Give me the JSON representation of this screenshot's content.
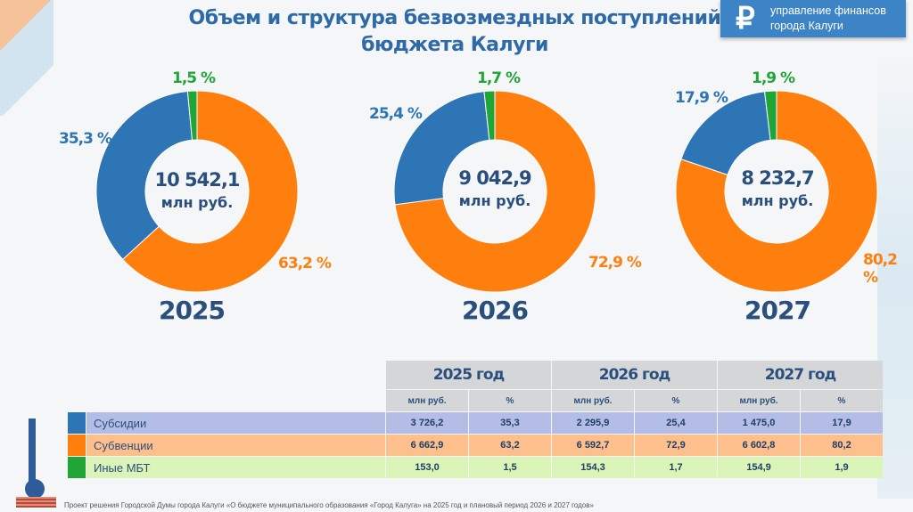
{
  "header": {
    "title_line1": "Объем и структура безвозмездных поступлений",
    "title_line2": "бюджета Калуги",
    "brand_symbol": "₽",
    "brand_line1": "управление финансов",
    "brand_line2": "города Калуги"
  },
  "colors": {
    "subsidies": "#2e75b6",
    "subventions": "#ff7f0e",
    "other": "#1fa637"
  },
  "chart_data": [
    {
      "type": "pie",
      "year": "2025",
      "total": "10 542,1",
      "unit": "млн руб.",
      "slices": [
        {
          "name": "Субвенции",
          "value": 63.2,
          "label": "63,2 %"
        },
        {
          "name": "Субсидии",
          "value": 35.3,
          "label": "35,3 %"
        },
        {
          "name": "Иные МБТ",
          "value": 1.5,
          "label": "1,5 %"
        }
      ]
    },
    {
      "type": "pie",
      "year": "2026",
      "total": "9 042,9",
      "unit": "млн руб.",
      "slices": [
        {
          "name": "Субвенции",
          "value": 72.9,
          "label": "72,9 %"
        },
        {
          "name": "Субсидии",
          "value": 25.4,
          "label": "25,4 %"
        },
        {
          "name": "Иные МБТ",
          "value": 1.7,
          "label": "1,7 %"
        }
      ]
    },
    {
      "type": "pie",
      "year": "2027",
      "total": "8 232,7",
      "unit": "млн руб.",
      "slices": [
        {
          "name": "Субвенции",
          "value": 80.2,
          "label": "80,2 %"
        },
        {
          "name": "Субсидии",
          "value": 17.9,
          "label": "17,9 %"
        },
        {
          "name": "Иные МБТ",
          "value": 1.9,
          "label": "1,9 %"
        }
      ]
    }
  ],
  "table": {
    "years": [
      "2025 год",
      "2026 год",
      "2027 год"
    ],
    "sub": {
      "amount": "млн руб.",
      "pct": "%"
    },
    "rows": [
      {
        "name": "Субсидии",
        "cells": [
          "3 726,2",
          "35,3",
          "2 295,9",
          "25,4",
          "1 475,0",
          "17,9"
        ]
      },
      {
        "name": "Субвенции",
        "cells": [
          "6 662,9",
          "63,2",
          "6 592,7",
          "72,9",
          "6 602,8",
          "80,2"
        ]
      },
      {
        "name": "Иные МБТ",
        "cells": [
          "153,0",
          "1,5",
          "154,3",
          "1,7",
          "154,9",
          "1,9"
        ]
      }
    ]
  },
  "footer": "Проект решения Городской Думы города Калуги «О бюджете муниципального образования «Город Калуга» на 2025 год и плановый период 2026 и 2027 годов»"
}
